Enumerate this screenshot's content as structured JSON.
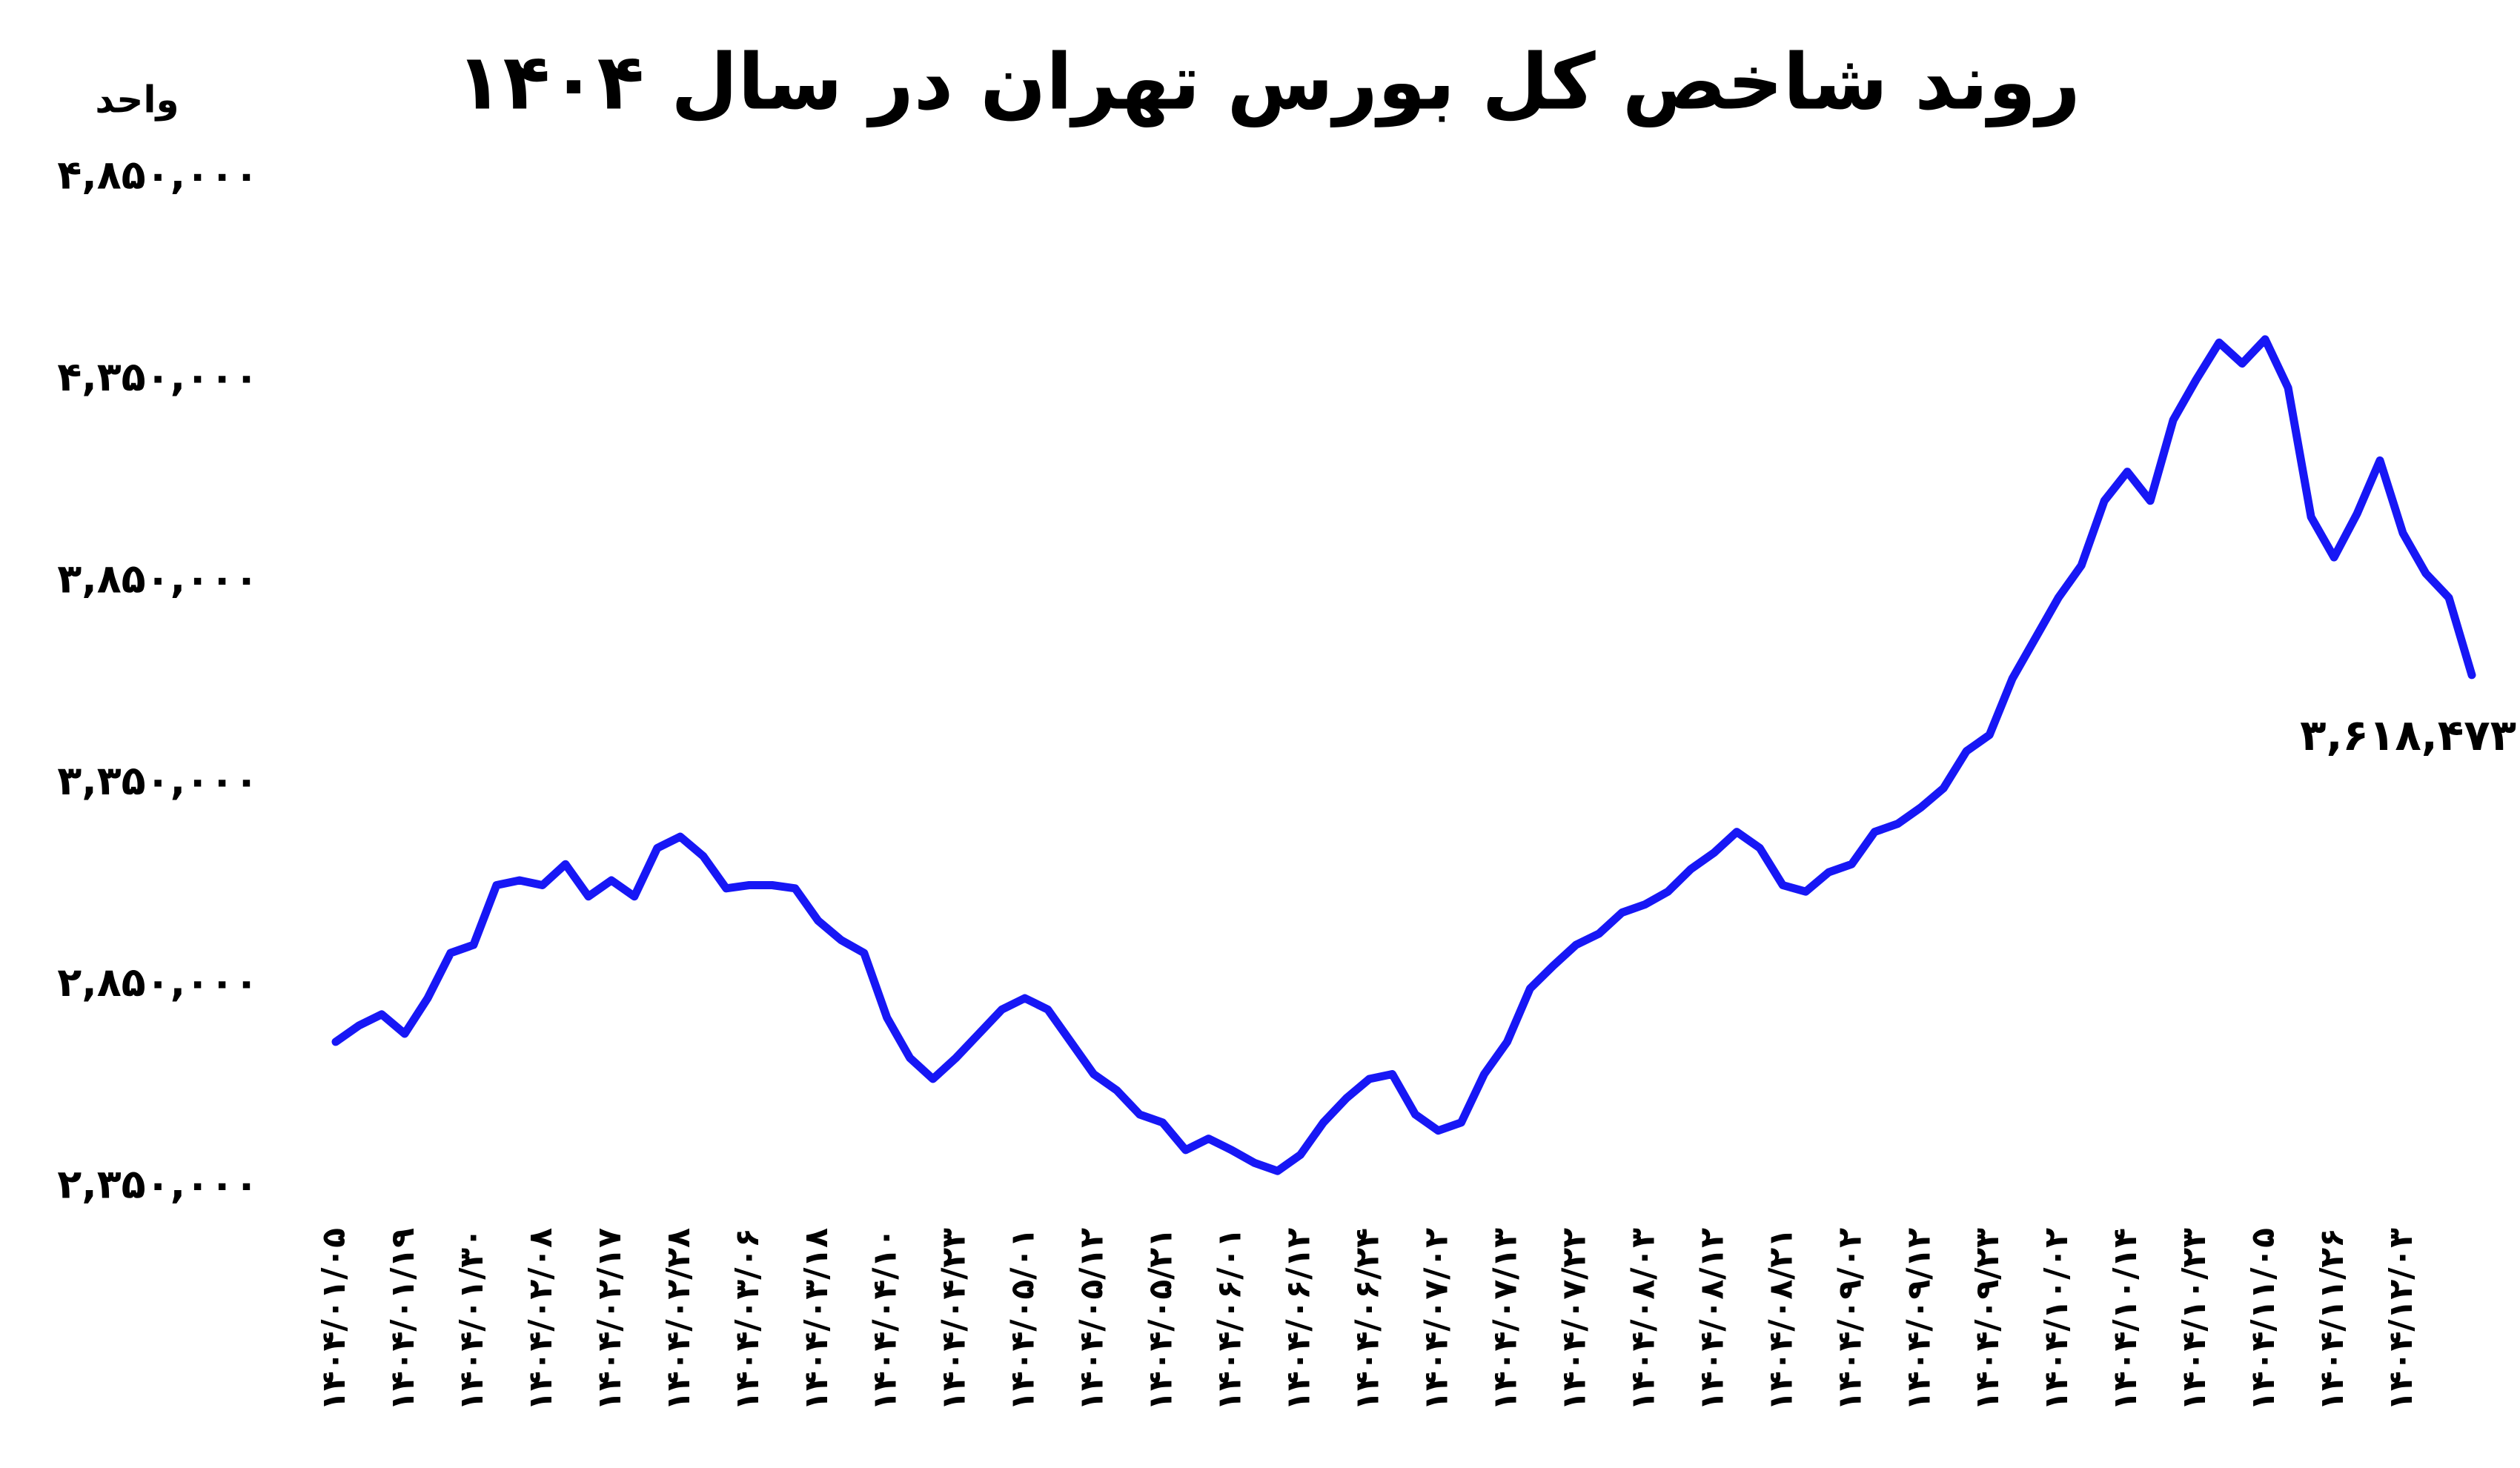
{
  "chart_data": {
    "type": "line",
    "title": "روند شاخص کل بورس تهران در سال ۱۴۰۴",
    "y_label": "واحد",
    "categories": [
      "۱۴۰۴/۰۱/۰۵",
      null,
      null,
      "۱۴۰۴/۰۱/۱۹",
      null,
      null,
      "۱۴۰۴/۰۱/۳۰",
      null,
      null,
      "۱۴۰۴/۰۲/۰۸",
      null,
      null,
      "۱۴۰۴/۰۲/۱۷",
      null,
      null,
      "۱۴۰۴/۰۲/۲۸",
      null,
      null,
      "۱۴۰۴/۰۳/۰۶",
      null,
      null,
      "۱۴۰۴/۰۳/۱۸",
      null,
      null,
      "۱۴۰۴/۰۴/۱۰",
      null,
      null,
      "۱۴۰۴/۰۴/۲۳",
      null,
      null,
      "۱۴۰۴/۰۵/۰۱",
      null,
      null,
      "۱۴۰۴/۰۵/۱۲",
      null,
      null,
      "۱۴۰۴/۰۵/۲۱",
      null,
      null,
      "۱۴۰۴/۰۶/۰۱",
      null,
      null,
      "۱۴۰۴/۰۶/۱۲",
      null,
      null,
      "۱۴۰۴/۰۶/۲۴",
      null,
      null,
      "۱۴۰۴/۰۷/۰۲",
      null,
      null,
      "۱۴۰۴/۰۷/۱۳",
      null,
      null,
      "۱۴۰۴/۰۷/۲۲",
      null,
      null,
      "۱۴۰۴/۰۸/۰۳",
      null,
      null,
      "۱۴۰۴/۰۸/۱۲",
      null,
      null,
      "۱۴۰۴/۰۸/۲۱",
      null,
      null,
      "۱۴۰۴/۰۹/۰۲",
      null,
      null,
      "۱۴۰۴/۰۹/۱۲",
      null,
      null,
      "۱۴۰۴/۰۹/۲۳",
      null,
      null,
      "۱۴۰۴/۱۰/۰۲",
      null,
      null,
      "۱۴۰۴/۱۰/۱۴",
      null,
      null,
      "۱۴۰۴/۱۰/۲۳",
      null,
      null,
      "۱۴۰۴/۱۱/۰۵",
      null,
      null,
      "۱۴۰۴/۱۱/۲۶",
      null,
      null,
      "۱۴۰۴/۱۲/۰۳",
      null,
      null,
      null
    ],
    "series": [
      {
        "color": "#1717f5",
        "values": [
          2710000,
          2750000,
          2778000,
          2730000,
          2818000,
          2930000,
          2950000,
          3098000,
          3110000,
          3098000,
          3150000,
          3070000,
          3110000,
          3070000,
          3190000,
          3218000,
          3170000,
          3090000,
          3098000,
          3098000,
          3090000,
          3010000,
          2962000,
          2930000,
          2770000,
          2670000,
          2618000,
          2670000,
          2730000,
          2790000,
          2818000,
          2790000,
          2710000,
          2630000,
          2590000,
          2530000,
          2510000,
          2442000,
          2470000,
          2442000,
          2410000,
          2390000,
          2430000,
          2510000,
          2570000,
          2618000,
          2630000,
          2530000,
          2490000,
          2510000,
          2630000,
          2710000,
          2842000,
          2898000,
          2950000,
          2978000,
          3030000,
          3050000,
          3082000,
          3138000,
          3178000,
          3230000,
          3190000,
          3098000,
          3082000,
          3130000,
          3150000,
          3230000,
          3250000,
          3290000,
          3338000,
          3430000,
          3470000,
          3610000,
          3710000,
          3810000,
          3890000,
          4050000,
          4122000,
          4050000,
          4250000,
          4350000,
          4442000,
          4390000,
          4450000,
          4330000,
          4010000,
          3910000,
          4018000,
          4150000,
          3970000,
          3870000,
          3810000,
          3618473
        ],
        "value_labels": [
          null,
          null,
          null,
          null,
          null,
          null,
          null,
          null,
          null,
          null,
          null,
          null,
          null,
          null,
          null,
          null,
          null,
          null,
          null,
          null,
          null,
          null,
          null,
          null,
          null,
          null,
          null,
          null,
          null,
          null,
          null,
          null,
          null,
          null,
          null,
          null,
          null,
          null,
          null,
          null,
          null,
          null,
          null,
          null,
          null,
          null,
          null,
          null,
          null,
          null,
          null,
          null,
          null,
          null,
          null,
          null,
          null,
          null,
          null,
          null,
          null,
          null,
          null,
          null,
          null,
          null,
          null,
          null,
          null,
          null,
          null,
          null,
          null,
          null,
          null,
          null,
          null,
          null,
          null,
          null,
          null,
          null,
          null,
          null,
          null,
          null,
          null,
          null,
          null,
          null,
          null,
          null,
          null,
          "۳,۶۱۸,۴۷۳"
        ]
      }
    ],
    "ylim": [
      2350000,
      4850000
    ],
    "yticks": [
      {
        "value": 2350000,
        "label": "۲,۳۵۰,۰۰۰"
      },
      {
        "value": 2850000,
        "label": "۲,۸۵۰,۰۰۰"
      },
      {
        "value": 3350000,
        "label": "۳,۳۵۰,۰۰۰"
      },
      {
        "value": 3850000,
        "label": "۳,۸۵۰,۰۰۰"
      },
      {
        "value": 4350000,
        "label": "۴,۳۵۰,۰۰۰"
      },
      {
        "value": 4850000,
        "label": "۴,۸۵۰,۰۰۰"
      }
    ],
    "grid": false
  }
}
